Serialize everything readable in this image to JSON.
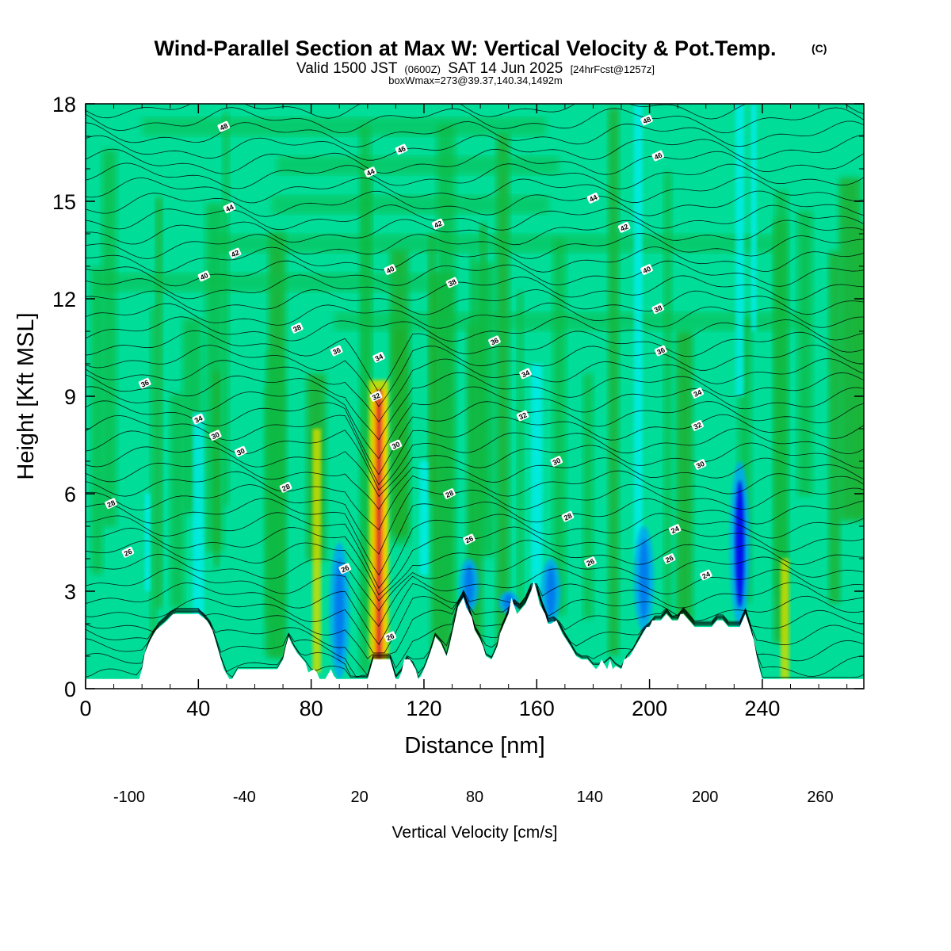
{
  "chart_data": {
    "type": "heatmap",
    "title": "Wind-Parallel Section at Max W: Vertical Velocity & Pot.Temp.",
    "title_mark": "(C)",
    "subtitle_parts": [
      "Valid 1500 JST",
      "(0600Z)",
      "SAT 14 Jun 2025",
      "[24hrFcst@1257z]"
    ],
    "note": "boxWmax=273@39.37,140.34,1492m",
    "xlabel": "Distance [nm]",
    "ylabel": "Height [Kft MSL]",
    "xlim": [
      0,
      276
    ],
    "ylim": [
      0,
      18
    ],
    "xticks": [
      0,
      40,
      80,
      120,
      160,
      200,
      240
    ],
    "yticks": [
      0,
      3,
      6,
      9,
      12,
      15,
      18
    ],
    "colorbar": {
      "label": "Vertical Velocity [cm/s]",
      "range": [
        -100,
        260
      ],
      "step": 20,
      "tick_values": [
        -100,
        -40,
        20,
        80,
        140,
        200,
        260
      ],
      "tick_labels": [
        "-100",
        "-40",
        "20",
        "80",
        "140",
        "200",
        "260"
      ],
      "colors": [
        "#0000ee",
        "#0055ee",
        "#00aaee",
        "#00eeee",
        "#00dd99",
        "#11bb44",
        "#22aa22",
        "#77cc11",
        "#ccdd00",
        "#ffee00",
        "#ffcc00",
        "#ffaa00",
        "#ff7700",
        "#ff4400",
        "#ee0000",
        "#bb0022",
        "#990055",
        "#660088"
      ]
    },
    "updrafts": [
      {
        "x": 104,
        "w_max": 273,
        "top_kft": 9.5
      },
      {
        "x": 82,
        "w_max": 60,
        "top_kft": 8
      },
      {
        "x": 248,
        "w_max": 60,
        "top_kft": 4
      }
    ],
    "downdrafts": [
      {
        "x": 232,
        "w_min": -100,
        "top_kft": 7
      },
      {
        "x": 136,
        "w_min": -60,
        "top_kft": 4
      },
      {
        "x": 150,
        "w_min": -60,
        "top_kft": 3
      },
      {
        "x": 165,
        "w_min": -60,
        "top_kft": 4
      },
      {
        "x": 198,
        "w_min": -60,
        "top_kft": 5
      },
      {
        "x": 90,
        "w_min": -40,
        "top_kft": 4.5
      }
    ],
    "terrain": {
      "x": [
        0,
        19,
        20,
        21,
        23,
        25,
        29,
        31,
        40,
        43,
        45,
        46,
        47,
        48,
        49,
        51,
        52,
        54,
        58,
        68,
        70,
        71,
        72,
        73,
        75,
        78,
        79,
        81,
        82,
        83,
        85,
        87,
        88,
        89,
        90,
        93,
        97,
        100,
        101,
        102,
        108,
        109,
        110,
        111,
        112,
        113,
        115,
        117,
        118,
        119,
        121,
        123,
        124,
        126,
        128,
        129,
        130,
        131,
        132,
        134,
        135,
        137,
        138,
        140,
        141,
        142,
        144,
        146,
        147,
        150,
        151,
        153,
        156,
        158,
        159,
        160,
        161,
        163,
        164,
        165,
        167,
        169,
        172,
        174,
        176,
        178,
        181,
        182,
        183,
        185,
        186,
        187,
        188,
        190,
        191,
        193,
        195,
        197,
        199,
        200,
        201,
        203,
        204,
        206,
        208,
        210,
        211,
        212,
        214,
        216,
        218,
        220,
        222,
        224,
        226,
        228,
        230,
        232,
        234,
        237,
        238,
        239,
        240,
        276
      ],
      "y": [
        0.3,
        0.3,
        0.6,
        1.1,
        1.5,
        1.8,
        2.1,
        2.3,
        2.3,
        2.1,
        1.8,
        1.5,
        1.2,
        0.9,
        0.6,
        0.3,
        0.3,
        0.6,
        0.6,
        0.6,
        0.9,
        1.3,
        1.6,
        1.4,
        1.1,
        0.8,
        0.5,
        0.6,
        0.5,
        0.3,
        0.3,
        0.6,
        0.4,
        0.3,
        0.3,
        0.3,
        0.3,
        0.3,
        0.6,
        0.9,
        0.9,
        0.6,
        0.3,
        0.3,
        0.5,
        0.9,
        0.9,
        0.6,
        0.3,
        0.4,
        0.8,
        1.3,
        1.6,
        1.4,
        1.0,
        1.3,
        1.7,
        2.1,
        2.5,
        2.8,
        2.5,
        2.2,
        1.8,
        1.5,
        1.3,
        1.0,
        0.9,
        1.3,
        1.7,
        2.3,
        2.8,
        2.3,
        2.6,
        3.0,
        3.3,
        3.0,
        2.6,
        2.3,
        2.0,
        2.0,
        2.1,
        1.7,
        1.3,
        1.0,
        0.9,
        0.9,
        0.6,
        0.7,
        0.9,
        0.6,
        0.9,
        0.6,
        0.7,
        0.6,
        0.9,
        1.0,
        1.3,
        1.6,
        1.9,
        1.9,
        2.1,
        2.1,
        2.1,
        2.3,
        2.1,
        2.1,
        2.3,
        2.3,
        2.1,
        1.9,
        1.9,
        1.9,
        1.9,
        2.1,
        2.1,
        1.9,
        1.9,
        1.9,
        2.3,
        1.5,
        1.0,
        0.6,
        0.3,
        0.3
      ],
      "ground_color": "#ffffff"
    },
    "contours": {
      "variable": "Potential temperature (C)",
      "interval": 1,
      "labels": [
        {
          "value": "48",
          "x": 49,
          "y": 17.3
        },
        {
          "value": "46",
          "x": 112,
          "y": 16.6
        },
        {
          "value": "44",
          "x": 101,
          "y": 15.9
        },
        {
          "value": "44",
          "x": 51,
          "y": 14.8
        },
        {
          "value": "42",
          "x": 125,
          "y": 14.3
        },
        {
          "value": "42",
          "x": 53,
          "y": 13.4
        },
        {
          "value": "40",
          "x": 42,
          "y": 12.7
        },
        {
          "value": "40",
          "x": 108,
          "y": 12.9
        },
        {
          "value": "38",
          "x": 130,
          "y": 12.5
        },
        {
          "value": "38",
          "x": 75,
          "y": 11.1
        },
        {
          "value": "36",
          "x": 89,
          "y": 10.4
        },
        {
          "value": "36",
          "x": 145,
          "y": 10.7
        },
        {
          "value": "34",
          "x": 104,
          "y": 10.2
        },
        {
          "value": "34",
          "x": 156,
          "y": 9.7
        },
        {
          "value": "36",
          "x": 21,
          "y": 9.4
        },
        {
          "value": "34",
          "x": 40,
          "y": 8.3
        },
        {
          "value": "32",
          "x": 103,
          "y": 9.0
        },
        {
          "value": "32",
          "x": 155,
          "y": 8.4
        },
        {
          "value": "30",
          "x": 46,
          "y": 7.8
        },
        {
          "value": "30",
          "x": 110,
          "y": 7.5
        },
        {
          "value": "30",
          "x": 55,
          "y": 7.3
        },
        {
          "value": "30",
          "x": 167,
          "y": 7.0
        },
        {
          "value": "28",
          "x": 71,
          "y": 6.2
        },
        {
          "value": "28",
          "x": 129,
          "y": 6.0
        },
        {
          "value": "28",
          "x": 9,
          "y": 5.7
        },
        {
          "value": "28",
          "x": 171,
          "y": 5.3
        },
        {
          "value": "26",
          "x": 136,
          "y": 4.6
        },
        {
          "value": "26",
          "x": 15,
          "y": 4.2
        },
        {
          "value": "26",
          "x": 92,
          "y": 3.7
        },
        {
          "value": "26",
          "x": 179,
          "y": 3.9
        },
        {
          "value": "26",
          "x": 207,
          "y": 4.0
        },
        {
          "value": "24",
          "x": 209,
          "y": 4.9
        },
        {
          "value": "24",
          "x": 220,
          "y": 3.5
        },
        {
          "value": "26",
          "x": 108,
          "y": 1.6
        },
        {
          "value": "48",
          "x": 199,
          "y": 17.5
        },
        {
          "value": "46",
          "x": 203,
          "y": 16.4
        },
        {
          "value": "44",
          "x": 180,
          "y": 15.1
        },
        {
          "value": "42",
          "x": 191,
          "y": 14.2
        },
        {
          "value": "40",
          "x": 199,
          "y": 12.9
        },
        {
          "value": "38",
          "x": 203,
          "y": 11.7
        },
        {
          "value": "36",
          "x": 204,
          "y": 10.4
        },
        {
          "value": "34",
          "x": 217,
          "y": 9.1
        },
        {
          "value": "32",
          "x": 217,
          "y": 8.1
        },
        {
          "value": "30",
          "x": 218,
          "y": 6.9
        }
      ]
    }
  }
}
